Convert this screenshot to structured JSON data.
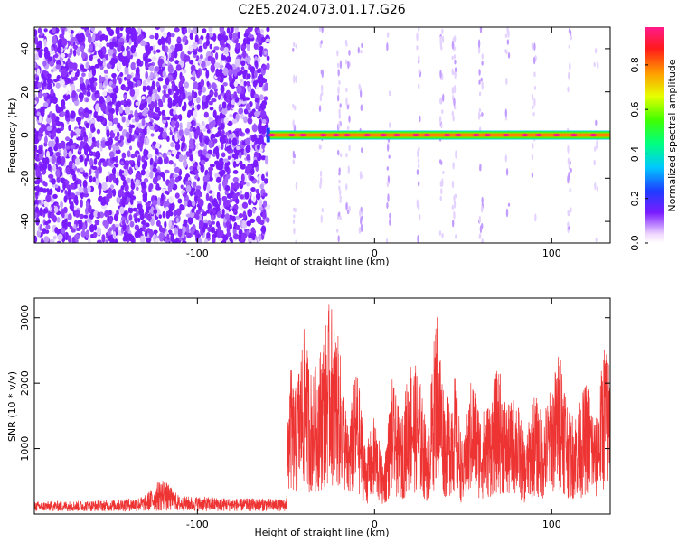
{
  "figure": {
    "title": "C2E5.2024.073.01.17.G26"
  },
  "chart_data": [
    {
      "type": "heatmap",
      "name": "spectrogram",
      "xlabel": "Height of straight line (km)",
      "ylabel": "Frequency (Hz)",
      "xlim": [
        -192,
        133
      ],
      "ylim": [
        -50,
        50
      ],
      "xticks": [
        -100,
        0,
        100
      ],
      "xtick_labels": [
        "-100",
        "0",
        "100"
      ],
      "yticks": [
        -40,
        -20,
        0,
        20,
        40
      ],
      "ytick_labels": [
        "-40",
        "-20",
        "0",
        "20",
        "40"
      ],
      "colorbar": {
        "label": "Normalized spectral amplitude",
        "range": [
          0.0,
          0.97
        ],
        "ticks": [
          0.0,
          0.2,
          0.4,
          0.6,
          0.8
        ],
        "tick_labels": [
          "0.0",
          "0.2",
          "0.4",
          "0.6",
          "0.8"
        ],
        "colors": [
          "#ffffff",
          "#7a1cff",
          "#1f3cff",
          "#00c8ff",
          "#00ff80",
          "#40ff00",
          "#e6ff00",
          "#ff9900",
          "#ff1a1a",
          "#ff1a8c"
        ]
      },
      "noise_region_x": [
        -192,
        -60
      ],
      "signal_start_x": -60,
      "carrier_frequency_hz": 0,
      "grid": false
    },
    {
      "type": "line",
      "name": "snr",
      "xlabel": "Height of straight line (km)",
      "ylabel": "SNR (10 * v/v)",
      "xlim": [
        -192,
        133
      ],
      "ylim": [
        0,
        3300
      ],
      "xticks": [
        -100,
        0,
        100
      ],
      "xtick_labels": [
        "-100",
        "0",
        "100"
      ],
      "yticks": [
        1000,
        2000,
        3000
      ],
      "ytick_labels": [
        "1000",
        "2000",
        "3000"
      ],
      "color": "#ee3333",
      "series": [
        {
          "x": [
            -192,
            -170,
            -150,
            -130,
            -120,
            -110,
            -100,
            -80,
            -60,
            -50,
            -48,
            -45,
            -40,
            -35,
            -30,
            -25,
            -20,
            -15,
            -10,
            -5,
            0,
            5,
            10,
            15,
            20,
            25,
            30,
            35,
            40,
            45,
            50,
            55,
            60,
            65,
            70,
            75,
            80,
            85,
            90,
            95,
            100,
            105,
            110,
            115,
            120,
            125,
            130,
            133
          ],
          "y": [
            150,
            160,
            170,
            230,
            520,
            230,
            230,
            200,
            200,
            180,
            2200,
            1700,
            2600,
            1900,
            2400,
            3000,
            2400,
            1200,
            2100,
            900,
            1400,
            700,
            1900,
            1300,
            2200,
            2000,
            1100,
            3000,
            1500,
            2000,
            900,
            2000,
            1400,
            1600,
            2100,
            1500,
            1700,
            1000,
            1700,
            1400,
            1800,
            2400,
            1400,
            1500,
            1900,
            1300,
            2500,
            2100
          ]
        }
      ],
      "grid": false
    }
  ]
}
